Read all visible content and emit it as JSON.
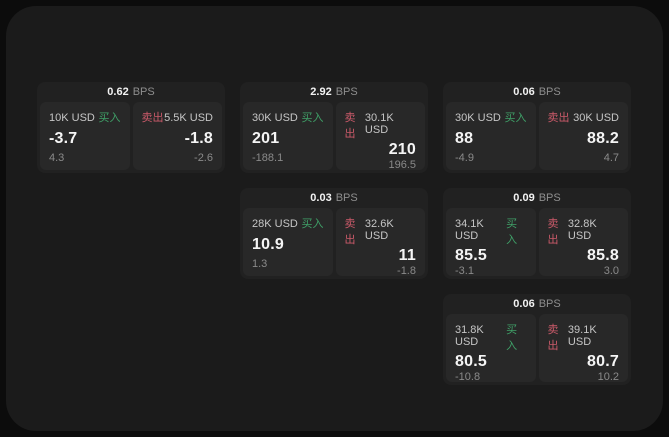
{
  "theme": {
    "outer_bg": "#0c0c0c",
    "panel_bg": "#1b1b1b",
    "card_bg": "#212121",
    "tile_bg": "#282828",
    "text_primary": "#f5f5f5",
    "text_label": "#c6c6c6",
    "text_muted": "#8a8a8a",
    "buy_color": "#3fa068",
    "sell_color": "#cb5a6a"
  },
  "labels": {
    "bps_suffix": "BPS",
    "buy": "买入",
    "sell": "卖出"
  },
  "cards": [
    {
      "bps": "0.62",
      "buy": {
        "amount": "10K USD",
        "value": "-3.7",
        "sub": "4.3"
      },
      "sell": {
        "amount": "5.5K USD",
        "value": "-1.8",
        "sub": "-2.6"
      }
    },
    {
      "bps": "2.92",
      "buy": {
        "amount": "30K USD",
        "value": "201",
        "sub": "-188.1"
      },
      "sell": {
        "amount": "30.1K USD",
        "value": "210",
        "sub": "196.5"
      }
    },
    {
      "bps": "0.06",
      "buy": {
        "amount": "30K USD",
        "value": "88",
        "sub": "-4.9"
      },
      "sell": {
        "amount": "30K USD",
        "value": "88.2",
        "sub": "4.7"
      }
    },
    {
      "bps": "0.03",
      "buy": {
        "amount": "28K USD",
        "value": "10.9",
        "sub": "1.3"
      },
      "sell": {
        "amount": "32.6K USD",
        "value": "11",
        "sub": "-1.8"
      }
    },
    {
      "bps": "0.09",
      "buy": {
        "amount": "34.1K USD",
        "value": "85.5",
        "sub": "-3.1"
      },
      "sell": {
        "amount": "32.8K USD",
        "value": "85.8",
        "sub": "3.0"
      }
    },
    {
      "bps": "0.06",
      "buy": {
        "amount": "31.8K USD",
        "value": "80.5",
        "sub": "-10.8"
      },
      "sell": {
        "amount": "39.1K USD",
        "value": "80.7",
        "sub": "10.2"
      }
    }
  ]
}
